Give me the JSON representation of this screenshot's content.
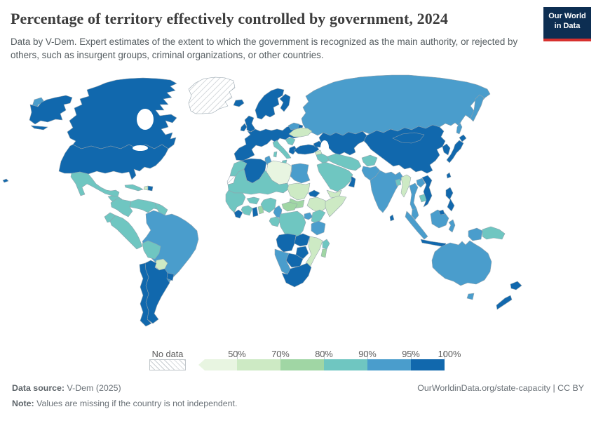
{
  "header": {
    "title": "Percentage of territory effectively controlled by government, 2024",
    "subtitle": "Data by V-Dem. Expert estimates of the extent to which the government is recognized as the main authority, or rejected by others, such as insurgent groups, criminal organizations, or other countries.",
    "logo": {
      "line1": "Our World",
      "line2": "in Data",
      "bg_color": "#0d2e52",
      "accent_color": "#d7312e"
    }
  },
  "footer": {
    "source_label": "Data source:",
    "source_value": "V-Dem (2025)",
    "link": "OurWorldinData.org/state-capacity | CC BY",
    "note_label": "Note:",
    "note_value": "Values are missing if the country is not independent."
  },
  "chart_data": {
    "type": "heatmap",
    "subtype": "choropleth-world-map",
    "title": "Percentage of territory effectively controlled by government, 2024",
    "unit": "%",
    "legend": {
      "no_data_label": "No data",
      "tick_labels": [
        "50%",
        "70%",
        "80%",
        "90%",
        "95%",
        "100%"
      ],
      "bins": [
        {
          "label": "<50%",
          "color": "#e8f5e1"
        },
        {
          "label": "50-70%",
          "color": "#cdeac4"
        },
        {
          "label": "70-80%",
          "color": "#a0d6a4"
        },
        {
          "label": "80-90%",
          "color": "#6fc6c1"
        },
        {
          "label": "90-95%",
          "color": "#4a9dcc"
        },
        {
          "label": "95-100%",
          "color": "#1168ad"
        }
      ],
      "no_data_pattern": "diagonal-hatch"
    },
    "regions": [
      {
        "id": "chukotka",
        "name": "Russia (Chukotka)",
        "bin": 5
      },
      {
        "id": "alaska",
        "name": "United States (Alaska)",
        "bin": 6
      },
      {
        "id": "canada",
        "name": "Canada",
        "bin": 6
      },
      {
        "id": "greenland",
        "name": "Greenland",
        "bin": 0
      },
      {
        "id": "usa",
        "name": "United States",
        "bin": 6
      },
      {
        "id": "mexico",
        "name": "Mexico",
        "bin": 4
      },
      {
        "id": "central_america",
        "name": "Central America",
        "bin": 4
      },
      {
        "id": "cuba",
        "name": "Cuba",
        "bin": 4
      },
      {
        "id": "haiti",
        "name": "Haiti",
        "bin": 2
      },
      {
        "id": "dominican_republic",
        "name": "Dominican Republic",
        "bin": 6
      },
      {
        "id": "hawaii",
        "name": "United States (Hawaii)",
        "bin": 6
      },
      {
        "id": "colombia",
        "name": "Colombia",
        "bin": 4
      },
      {
        "id": "venezuela",
        "name": "Venezuela",
        "bin": 4
      },
      {
        "id": "guyanas",
        "name": "Guyana & Suriname",
        "bin": 4
      },
      {
        "id": "ecuador",
        "name": "Ecuador",
        "bin": 4
      },
      {
        "id": "peru",
        "name": "Peru",
        "bin": 4
      },
      {
        "id": "brazil",
        "name": "Brazil",
        "bin": 5
      },
      {
        "id": "bolivia",
        "name": "Bolivia",
        "bin": 4
      },
      {
        "id": "paraguay",
        "name": "Paraguay",
        "bin": 2
      },
      {
        "id": "uruguay",
        "name": "Uruguay",
        "bin": 6
      },
      {
        "id": "argentina",
        "name": "Argentina",
        "bin": 6
      },
      {
        "id": "chile",
        "name": "Chile",
        "bin": 6
      },
      {
        "id": "russia",
        "name": "Russia",
        "bin": 5
      },
      {
        "id": "kamchatka",
        "name": "Russia (Kamchatka)",
        "bin": 5
      },
      {
        "id": "sakhalin",
        "name": "Russia (Sakhalin)",
        "bin": 5
      },
      {
        "id": "iceland",
        "name": "Iceland",
        "bin": 6
      },
      {
        "id": "ireland",
        "name": "Ireland",
        "bin": 6
      },
      {
        "id": "uk",
        "name": "United Kingdom",
        "bin": 6
      },
      {
        "id": "scandinavia",
        "name": "Norway & Sweden",
        "bin": 6
      },
      {
        "id": "finland",
        "name": "Finland",
        "bin": 6
      },
      {
        "id": "europe_main",
        "name": "Western & Central Europe",
        "bin": 6
      },
      {
        "id": "italy",
        "name": "Italy",
        "bin": 4
      },
      {
        "id": "sicily",
        "name": "Italy (Sicily)",
        "bin": 4
      },
      {
        "id": "sardinia",
        "name": "Italy (Sardinia)",
        "bin": 4
      },
      {
        "id": "balkans",
        "name": "Western Balkans",
        "bin": 4
      },
      {
        "id": "greece",
        "name": "Greece",
        "bin": 6
      },
      {
        "id": "belarus",
        "name": "Belarus",
        "bin": 5
      },
      {
        "id": "ukraine",
        "name": "Ukraine",
        "bin": 2
      },
      {
        "id": "turkey",
        "name": "Turkey",
        "bin": 6
      },
      {
        "id": "kazakhstan",
        "name": "Kazakhstan & Central Asia",
        "bin": 6
      },
      {
        "id": "caucasus",
        "name": "Caucasus",
        "bin": 6
      },
      {
        "id": "china",
        "name": "China",
        "bin": 6
      },
      {
        "id": "mongolia",
        "name": "Mongolia",
        "bin": 6
      },
      {
        "id": "korea",
        "name": "Korea",
        "bin": 6
      },
      {
        "id": "japan",
        "name": "Japan",
        "bin": 6
      },
      {
        "id": "hokkaido",
        "name": "Japan (Hokkaido)",
        "bin": 6
      },
      {
        "id": "taiwan",
        "name": "Taiwan",
        "bin": 6
      },
      {
        "id": "syria",
        "name": "Syria",
        "bin": 2
      },
      {
        "id": "iraq",
        "name": "Iraq",
        "bin": 4
      },
      {
        "id": "iran",
        "name": "Iran",
        "bin": 4
      },
      {
        "id": "saudi",
        "name": "Saudi Arabia",
        "bin": 4
      },
      {
        "id": "yemen",
        "name": "Yemen",
        "bin": 2
      },
      {
        "id": "oman",
        "name": "Oman",
        "bin": 6
      },
      {
        "id": "afghanistan",
        "name": "Afghanistan",
        "bin": 4
      },
      {
        "id": "pakistan",
        "name": "Pakistan",
        "bin": 5
      },
      {
        "id": "india",
        "name": "India",
        "bin": 5
      },
      {
        "id": "sri_lanka",
        "name": "Sri Lanka",
        "bin": 6
      },
      {
        "id": "bangladesh",
        "name": "Bangladesh",
        "bin": 4
      },
      {
        "id": "myanmar",
        "name": "Myanmar",
        "bin": 2
      },
      {
        "id": "thailand",
        "name": "Thailand",
        "bin": 5
      },
      {
        "id": "laos",
        "name": "Laos",
        "bin": 5
      },
      {
        "id": "cambodia",
        "name": "Cambodia",
        "bin": 4
      },
      {
        "id": "vietnam",
        "name": "Vietnam",
        "bin": 6
      },
      {
        "id": "malaysia",
        "name": "Malaysia (Peninsula)",
        "bin": 5
      },
      {
        "id": "sumatra",
        "name": "Indonesia (Sumatra)",
        "bin": 5
      },
      {
        "id": "borneo",
        "name": "Borneo",
        "bin": 5
      },
      {
        "id": "brunei",
        "name": "Brunei",
        "bin": 6
      },
      {
        "id": "java",
        "name": "Indonesia (Java)",
        "bin": 6
      },
      {
        "id": "sulawesi",
        "name": "Indonesia (Sulawesi)",
        "bin": 5
      },
      {
        "id": "lesser_sunda",
        "name": "Indonesia (Lesser Sunda)",
        "bin": 6
      },
      {
        "id": "west_papua",
        "name": "Indonesia (Papua)",
        "bin": 5
      },
      {
        "id": "png",
        "name": "Papua New Guinea",
        "bin": 4
      },
      {
        "id": "philippines",
        "name": "Philippines",
        "bin": 6
      },
      {
        "id": "australia",
        "name": "Australia",
        "bin": 5
      },
      {
        "id": "tasmania",
        "name": "Australia (Tasmania)",
        "bin": 5
      },
      {
        "id": "nz_north",
        "name": "New Zealand (North Island)",
        "bin": 6
      },
      {
        "id": "nz_south",
        "name": "New Zealand (South Island)",
        "bin": 6
      },
      {
        "id": "morocco",
        "name": "Morocco",
        "bin": 4
      },
      {
        "id": "western_sahara",
        "name": "Western Sahara",
        "bin": 0
      },
      {
        "id": "algeria",
        "name": "Algeria",
        "bin": 6
      },
      {
        "id": "tunisia",
        "name": "Tunisia",
        "bin": 5
      },
      {
        "id": "libya",
        "name": "Libya",
        "bin": 1
      },
      {
        "id": "egypt",
        "name": "Egypt",
        "bin": 5
      },
      {
        "id": "sahel",
        "name": "Mauritania, Mali, Niger & Chad",
        "bin": 4
      },
      {
        "id": "sudan",
        "name": "Sudan",
        "bin": 2
      },
      {
        "id": "south_sudan",
        "name": "South Sudan",
        "bin": 3
      },
      {
        "id": "eritrea",
        "name": "Eritrea & Djibouti",
        "bin": 6
      },
      {
        "id": "ethiopia",
        "name": "Ethiopia",
        "bin": 2
      },
      {
        "id": "somalia",
        "name": "Somalia",
        "bin": 2
      },
      {
        "id": "senegal_guinea",
        "name": "Senegal & Guinea",
        "bin": 4
      },
      {
        "id": "sierra_leone_liberia",
        "name": "Sierra Leone & Liberia",
        "bin": 6
      },
      {
        "id": "ivory_coast",
        "name": "Cote d'Ivoire",
        "bin": 4
      },
      {
        "id": "burkina",
        "name": "Burkina Faso",
        "bin": 4
      },
      {
        "id": "ghana",
        "name": "Ghana",
        "bin": 6
      },
      {
        "id": "togo_benin",
        "name": "Togo & Benin",
        "bin": 3
      },
      {
        "id": "nigeria",
        "name": "Nigeria",
        "bin": 4
      },
      {
        "id": "cameroon",
        "name": "Cameroon",
        "bin": 5
      },
      {
        "id": "car",
        "name": "Central African Republic",
        "bin": 3
      },
      {
        "id": "gabon_congo",
        "name": "Gabon & Congo",
        "bin": 4
      },
      {
        "id": "drc",
        "name": "DR Congo",
        "bin": 4
      },
      {
        "id": "uganda",
        "name": "Uganda",
        "bin": 5
      },
      {
        "id": "kenya",
        "name": "Kenya",
        "bin": 4
      },
      {
        "id": "tanzania",
        "name": "Tanzania",
        "bin": 5
      },
      {
        "id": "angola",
        "name": "Angola",
        "bin": 6
      },
      {
        "id": "zambia",
        "name": "Zambia",
        "bin": 6
      },
      {
        "id": "malawi_mozambique",
        "name": "Malawi & Mozambique",
        "bin": 2
      },
      {
        "id": "zimbabwe",
        "name": "Zimbabwe",
        "bin": 6
      },
      {
        "id": "botswana",
        "name": "Botswana",
        "bin": 6
      },
      {
        "id": "namibia",
        "name": "Namibia",
        "bin": 5
      },
      {
        "id": "south_africa",
        "name": "South Africa",
        "bin": 6
      },
      {
        "id": "madagascar_n",
        "name": "Madagascar (North)",
        "bin": 4
      },
      {
        "id": "madagascar_s",
        "name": "Madagascar (South)",
        "bin": 3
      }
    ]
  }
}
